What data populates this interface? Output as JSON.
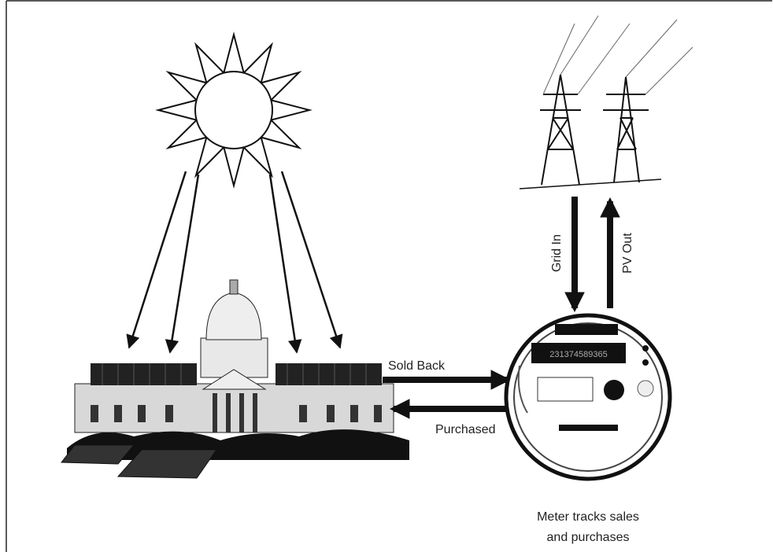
{
  "flows": {
    "sold_back": "Sold Back",
    "purchased": "Purchased",
    "grid_in": "Grid In",
    "pv_out": "PV Out"
  },
  "meter": {
    "display": "231374589365",
    "caption": [
      "Meter tracks sales",
      "and purchases"
    ]
  }
}
